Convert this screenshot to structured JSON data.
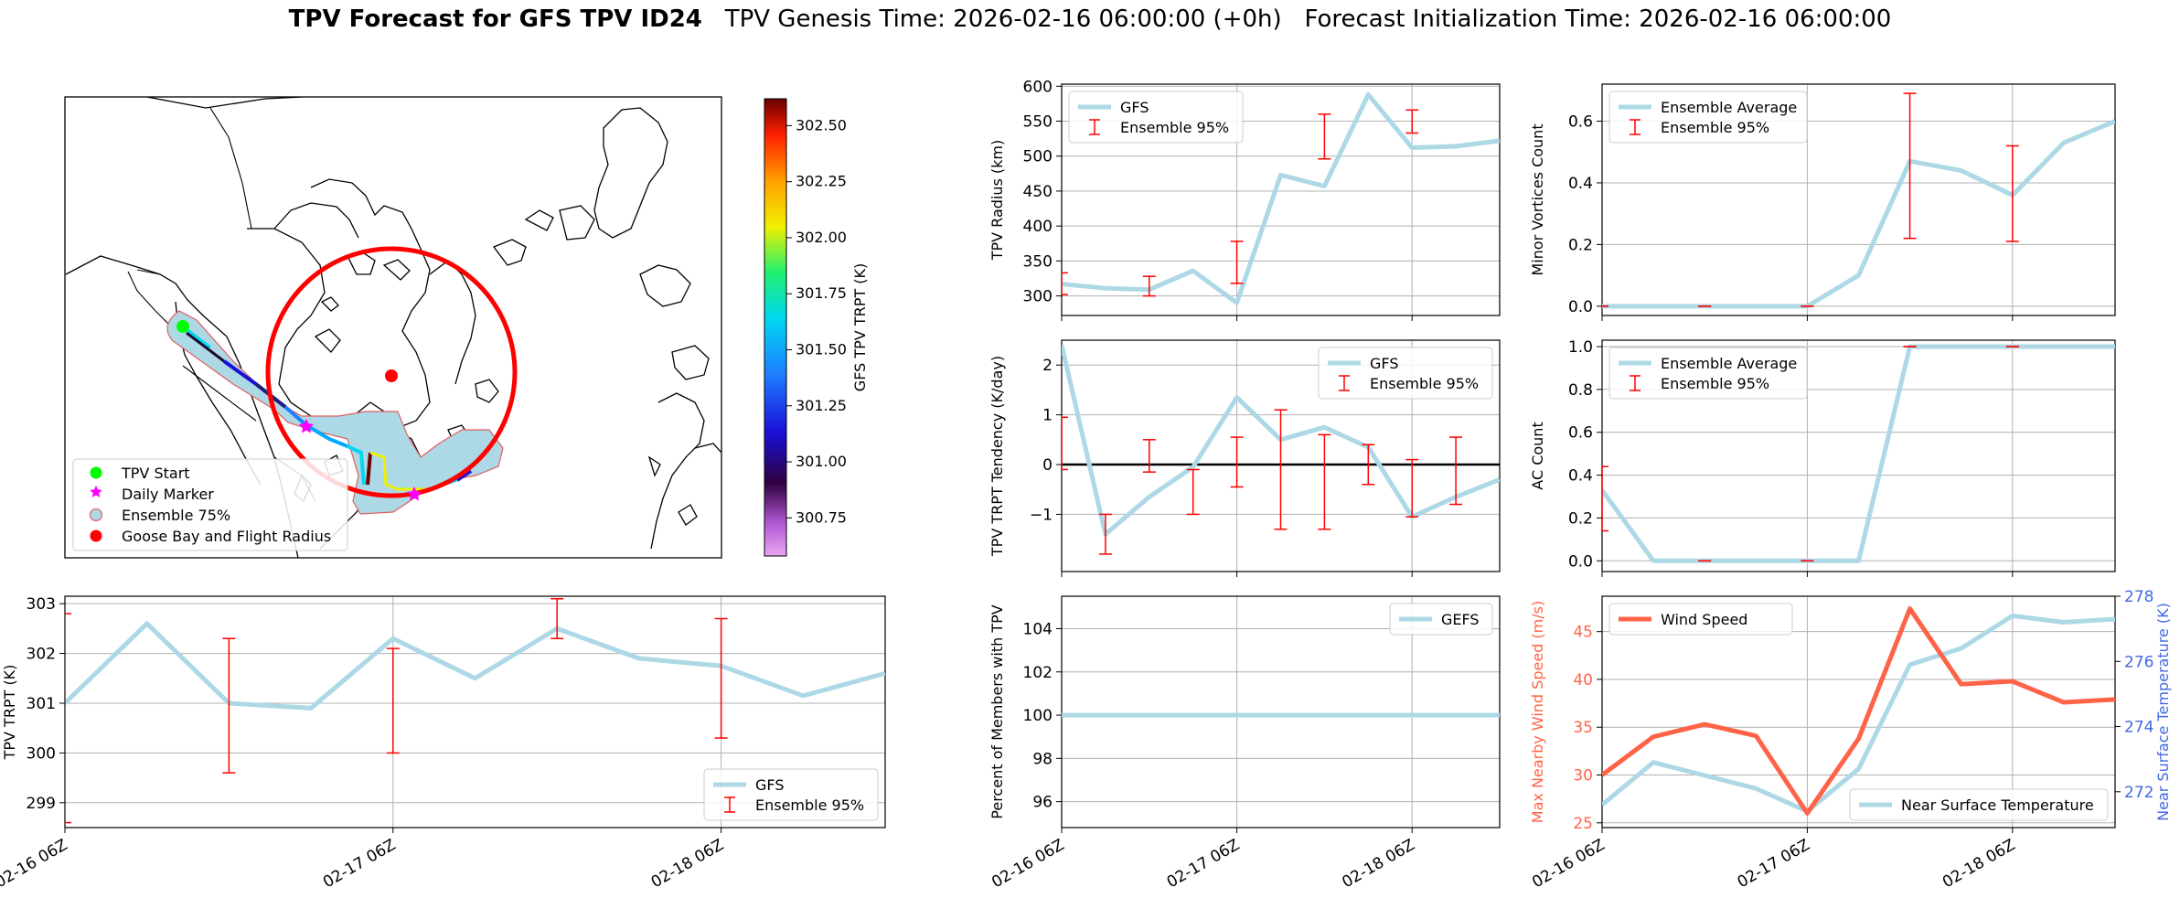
{
  "title": {
    "bold": "TPV Forecast for GFS TPV ID24",
    "genesis": "TPV Genesis Time: 2026-02-16 06:00:00 (+0h)",
    "init": "Forecast Initialization Time: 2026-02-16 06:00:00"
  },
  "colors": {
    "gfs_line": "#add8e6",
    "ensemble_bar": "#ff0000",
    "wind": "#ff6347",
    "temp_axis": "#4169e1",
    "track_outline": "#e06060"
  },
  "x_ticks": [
    "02-16 06Z",
    "02-17 06Z",
    "02-18 06Z"
  ],
  "map": {
    "colorbar": {
      "label": "GFS TPV TRPT (K)",
      "ticks": [
        "300.75",
        "301.00",
        "301.25",
        "301.50",
        "301.75",
        "302.00",
        "302.25",
        "302.50"
      ],
      "tick_values": [
        300.75,
        301.0,
        301.25,
        301.5,
        301.75,
        302.0,
        302.25,
        302.5
      ],
      "range": [
        300.58,
        302.62
      ]
    },
    "legend": [
      {
        "label": "TPV Start",
        "marker": "green-circle-icon"
      },
      {
        "label": "Daily Marker",
        "marker": "magenta-star-icon"
      },
      {
        "label": "Ensemble 75%",
        "marker": "lightblue-circle-icon"
      },
      {
        "label": "Goose Bay and Flight Radius",
        "marker": "red-circle-icon"
      }
    ]
  },
  "chart_data": [
    {
      "id": "radius",
      "type": "line",
      "ylabel": "TPV Radius (km)",
      "xlim": [
        0,
        60
      ],
      "ylim": [
        272,
        603
      ],
      "yticks": [
        "300",
        "350",
        "400",
        "450",
        "500",
        "550",
        "600"
      ],
      "ytick_values": [
        300,
        350,
        400,
        450,
        500,
        550,
        600
      ],
      "x": [
        0,
        6,
        12,
        18,
        24,
        30,
        36,
        42,
        48,
        54,
        60
      ],
      "series": [
        {
          "name": "GFS",
          "values": [
            317,
            311,
            309,
            336,
            290,
            473,
            457,
            588,
            512,
            514,
            522
          ]
        }
      ],
      "errorbars": {
        "name": "Ensemble 95%",
        "x": [
          0,
          12,
          24,
          36,
          48
        ],
        "low": [
          302,
          300,
          318,
          496,
          533
        ],
        "high": [
          333,
          328,
          378,
          560,
          566
        ]
      },
      "legend": "upper-left"
    },
    {
      "id": "minor",
      "type": "line",
      "ylabel": "Minor Vortices Count",
      "xlim": [
        0,
        60
      ],
      "ylim": [
        -0.03,
        0.72
      ],
      "yticks": [
        "0.0",
        "0.2",
        "0.4",
        "0.6"
      ],
      "ytick_values": [
        0,
        0.2,
        0.4,
        0.6
      ],
      "x": [
        0,
        6,
        12,
        18,
        24,
        30,
        36,
        42,
        48,
        54,
        60
      ],
      "series": [
        {
          "name": "Ensemble Average",
          "values": [
            0,
            0,
            0,
            0,
            0,
            0.1,
            0.47,
            0.44,
            0.36,
            0.53,
            0.6
          ]
        }
      ],
      "errorbars": {
        "name": "Ensemble 95%",
        "x": [
          0,
          12,
          24,
          36,
          48
        ],
        "low": [
          0,
          0,
          0,
          0.22,
          0.21
        ],
        "high": [
          0,
          0,
          0,
          0.69,
          0.52
        ]
      },
      "legend": "upper-left"
    },
    {
      "id": "tendency",
      "type": "line",
      "ylabel": "TPV TRPT Tendency (K/day)",
      "xlim": [
        0,
        60
      ],
      "ylim": [
        -2.15,
        2.5
      ],
      "yticks": [
        "−1",
        "0",
        "1",
        "2"
      ],
      "ytick_values": [
        -1,
        0,
        1,
        2
      ],
      "x": [
        0,
        6,
        12,
        18,
        24,
        30,
        36,
        42,
        48,
        54,
        60
      ],
      "series": [
        {
          "name": "GFS",
          "values": [
            2.4,
            -1.4,
            -0.65,
            -0.05,
            1.35,
            0.5,
            0.75,
            0.35,
            -1.05,
            -0.65,
            -0.3
          ]
        }
      ],
      "errorbars": {
        "name": "Ensemble 95%",
        "x": [
          0,
          6,
          12,
          18,
          24,
          30,
          36,
          42,
          48,
          54
        ],
        "low": [
          -0.1,
          -1.8,
          -0.15,
          -1.0,
          -0.45,
          -1.3,
          -1.3,
          -0.4,
          -1.05,
          -0.8
        ],
        "high": [
          0.95,
          -1.0,
          0.5,
          -0.1,
          0.55,
          1.1,
          0.6,
          0.4,
          0.1,
          0.55
        ]
      },
      "hline": 0,
      "legend": "upper-right"
    },
    {
      "id": "ac",
      "type": "line",
      "ylabel": "AC Count",
      "xlim": [
        0,
        60
      ],
      "ylim": [
        -0.05,
        1.03
      ],
      "yticks": [
        "0.0",
        "0.2",
        "0.4",
        "0.6",
        "0.8",
        "1.0"
      ],
      "ytick_values": [
        0,
        0.2,
        0.4,
        0.6,
        0.8,
        1.0
      ],
      "x": [
        0,
        6,
        12,
        18,
        24,
        30,
        36,
        42,
        48,
        54,
        60
      ],
      "series": [
        {
          "name": "Ensemble Average",
          "values": [
            0.33,
            0,
            0,
            0,
            0,
            0,
            1,
            1,
            1,
            1,
            1
          ]
        }
      ],
      "errorbars": {
        "name": "Ensemble 95%",
        "x": [
          0,
          12,
          24,
          36,
          48
        ],
        "low": [
          0.14,
          0,
          0,
          1,
          1
        ],
        "high": [
          0.44,
          0,
          0,
          1,
          1
        ]
      },
      "legend": "upper-left"
    },
    {
      "id": "trpt",
      "type": "line",
      "ylabel": "TPV TRPT (K)",
      "xlim": [
        0,
        60
      ],
      "ylim": [
        298.5,
        303.15
      ],
      "yticks": [
        "299",
        "300",
        "301",
        "302",
        "303"
      ],
      "ytick_values": [
        299,
        300,
        301,
        302,
        303
      ],
      "x": [
        0,
        6,
        12,
        18,
        24,
        30,
        36,
        42,
        48,
        54,
        60
      ],
      "series": [
        {
          "name": "GFS",
          "values": [
            301.0,
            302.6,
            301.0,
            300.9,
            302.3,
            301.5,
            302.5,
            301.9,
            301.75,
            301.15,
            301.6
          ]
        }
      ],
      "errorbars": {
        "name": "Ensemble 95%",
        "x": [
          0,
          12,
          24,
          36,
          48
        ],
        "low": [
          298.6,
          299.6,
          300.0,
          302.3,
          300.3
        ],
        "high": [
          302.8,
          302.3,
          302.1,
          303.1,
          302.7
        ]
      },
      "legend": "lower-right"
    },
    {
      "id": "percent",
      "type": "line",
      "ylabel": "Percent of Members with TPV",
      "xlim": [
        0,
        60
      ],
      "ylim": [
        94.8,
        105.5
      ],
      "yticks": [
        "96",
        "98",
        "100",
        "102",
        "104"
      ],
      "ytick_values": [
        96,
        98,
        100,
        102,
        104
      ],
      "x": [
        0,
        12,
        24,
        36,
        48,
        60
      ],
      "series": [
        {
          "name": "GEFS",
          "values": [
            100,
            100,
            100,
            100,
            100,
            100
          ]
        }
      ],
      "legend": "upper-right"
    },
    {
      "id": "wind",
      "type": "line",
      "ylabel": "Max Nearby Wind Speed (m/s)",
      "ylabel2": "Near Surface Temperature (K)",
      "xlim": [
        0,
        60
      ],
      "ylim": [
        24.5,
        48.7
      ],
      "ylim2": [
        270.9,
        278.0
      ],
      "yticks": [
        "25",
        "30",
        "35",
        "40",
        "45"
      ],
      "ytick_values": [
        25,
        30,
        35,
        40,
        45
      ],
      "yticks2": [
        "272",
        "274",
        "276",
        "278"
      ],
      "ytick2_values": [
        272,
        274,
        276,
        278
      ],
      "x": [
        0,
        6,
        12,
        18,
        24,
        30,
        36,
        42,
        48,
        54,
        60
      ],
      "series": [
        {
          "name": "Wind Speed",
          "values": [
            30,
            34,
            35.3,
            34.1,
            26,
            33.8,
            47.4,
            39.5,
            39.8,
            37.6,
            37.9
          ]
        },
        {
          "name": "Near Surface Temperature",
          "values": [
            271.6,
            272.9,
            272.5,
            272.1,
            271.4,
            272.7,
            275.9,
            276.4,
            277.4,
            277.2,
            277.3
          ]
        }
      ],
      "legend": "upper-left"
    }
  ]
}
